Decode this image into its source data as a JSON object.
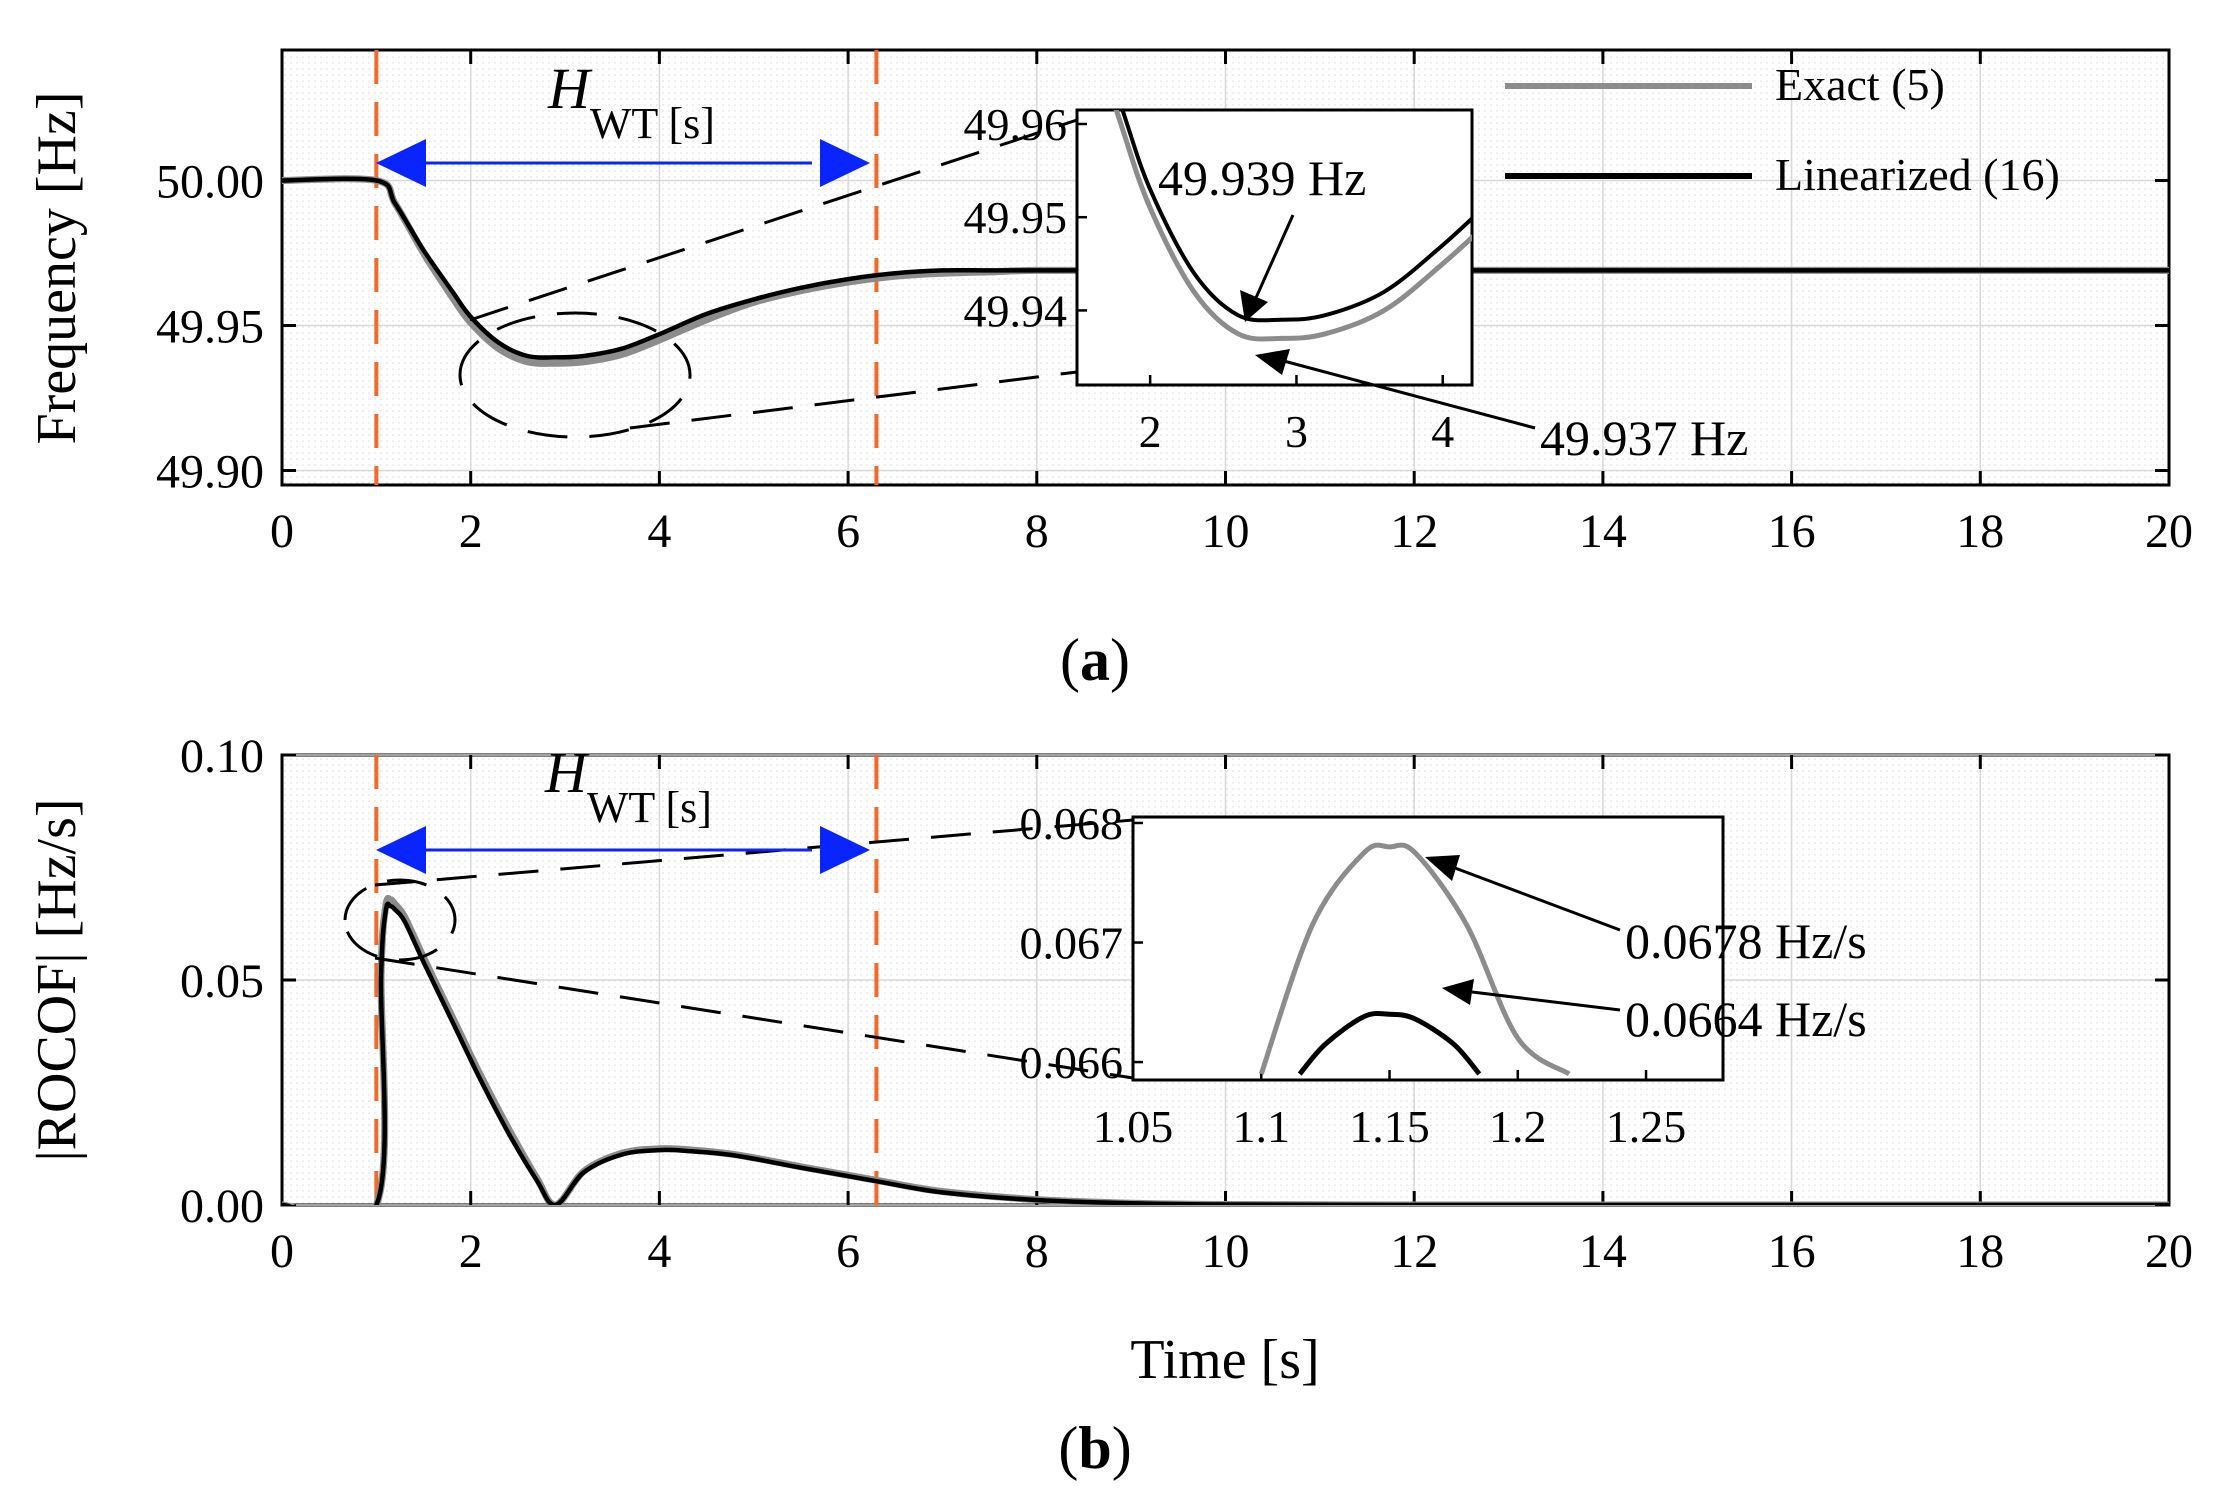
{
  "chart_data": [
    {
      "id": "a",
      "type": "line",
      "caption": {
        "open": "(",
        "letter": "a",
        "close": ")"
      },
      "xlabel": "",
      "ylabel": "Frequency [Hz]",
      "xlim": [
        0,
        20
      ],
      "ylim": [
        49.895,
        50.045
      ],
      "xticks": [
        0,
        2,
        4,
        6,
        8,
        10,
        12,
        14,
        16,
        18,
        20
      ],
      "yticks": [
        {
          "value": 50.0,
          "label": "50.00"
        },
        {
          "value": 49.95,
          "label": "49.95"
        },
        {
          "value": 49.9,
          "label": "49.90"
        }
      ],
      "vlines": [
        1.0,
        6.3
      ],
      "span_label": {
        "main": "H",
        "sub": "WT [s]"
      },
      "series": [
        {
          "name": "Exact (5)",
          "color": "#8c8c8c",
          "x": [
            0,
            1,
            1.2,
            1.5,
            1.8,
            2.0,
            2.3,
            2.6,
            2.9,
            3.2,
            3.6,
            4.0,
            4.5,
            5.0,
            5.5,
            6.0,
            6.5,
            7.0,
            7.5,
            8.0,
            9.0,
            10.0,
            12.0,
            14.0,
            16.0,
            18.0,
            20.0
          ],
          "y": [
            50.0,
            50.0,
            49.992,
            49.975,
            49.96,
            49.951,
            49.942,
            49.9375,
            49.937,
            49.9375,
            49.94,
            49.945,
            49.952,
            49.958,
            49.962,
            49.965,
            49.967,
            49.968,
            49.9685,
            49.969,
            49.969,
            49.969,
            49.969,
            49.969,
            49.969,
            49.969,
            49.969
          ]
        },
        {
          "name": "Linearized (16)",
          "color": "#000000",
          "x": [
            0,
            1,
            1.2,
            1.5,
            1.8,
            2.0,
            2.3,
            2.6,
            2.9,
            3.2,
            3.6,
            4.0,
            4.5,
            5.0,
            5.5,
            6.0,
            6.5,
            7.0,
            7.5,
            8.0,
            9.0,
            10.0,
            12.0,
            14.0,
            16.0,
            18.0,
            20.0
          ],
          "y": [
            50.0,
            50.0,
            49.992,
            49.976,
            49.962,
            49.953,
            49.944,
            49.9395,
            49.939,
            49.9395,
            49.942,
            49.947,
            49.954,
            49.959,
            49.963,
            49.966,
            49.968,
            49.969,
            49.969,
            49.969,
            49.969,
            49.969,
            49.969,
            49.969,
            49.969,
            49.969,
            49.969
          ]
        }
      ],
      "inset": {
        "xlim": [
          1.5,
          4.2
        ],
        "ylim": [
          49.932,
          49.9615
        ],
        "xticks": [
          2,
          3,
          4
        ],
        "yticks": [
          {
            "value": 49.96,
            "label": "49.96"
          },
          {
            "value": 49.95,
            "label": "49.95"
          },
          {
            "value": 49.94,
            "label": "49.94"
          }
        ]
      },
      "annotations": [
        {
          "text": "49.939 Hz",
          "target": "Linearized (16) minimum",
          "x": 2.9,
          "y": 49.939
        },
        {
          "text": "49.937 Hz",
          "target": "Exact (5) minimum",
          "x": 2.9,
          "y": 49.937
        }
      ]
    },
    {
      "id": "b",
      "type": "line",
      "caption": {
        "open": "(",
        "letter": "b",
        "close": ")"
      },
      "xlabel": "Time [s]",
      "ylabel": "|ROCOF| [Hz/s]",
      "xlim": [
        0,
        20
      ],
      "ylim": [
        0,
        0.1
      ],
      "xticks": [
        0,
        2,
        4,
        6,
        8,
        10,
        12,
        14,
        16,
        18,
        20
      ],
      "yticks": [
        {
          "value": 0.1,
          "label": "0.10"
        },
        {
          "value": 0.05,
          "label": "0.05"
        },
        {
          "value": 0.0,
          "label": "0.00"
        }
      ],
      "vlines": [
        1.0,
        6.3
      ],
      "span_label": {
        "main": "H",
        "sub": "WT [s]"
      },
      "series": [
        {
          "name": "Exact (5)",
          "color": "#8c8c8c",
          "x": [
            0,
            1.0,
            1.05,
            1.1,
            1.15,
            1.2,
            1.3,
            1.5,
            1.8,
            2.1,
            2.4,
            2.7,
            2.9,
            3.2,
            3.6,
            4.0,
            4.3,
            4.8,
            5.5,
            6.3,
            7.0,
            8.0,
            9.0,
            10.0,
            12.0,
            14.0,
            16.0,
            18.0,
            20.0
          ],
          "y": [
            0,
            0,
            0.052,
            0.0665,
            0.0678,
            0.0668,
            0.064,
            0.055,
            0.042,
            0.029,
            0.017,
            0.006,
            0.0,
            0.0075,
            0.0115,
            0.0125,
            0.0123,
            0.0112,
            0.0085,
            0.0055,
            0.003,
            0.0012,
            0.0004,
            0.0001,
            0,
            0,
            0,
            0,
            0
          ]
        },
        {
          "name": "Linearized (16)",
          "color": "#000000",
          "x": [
            0,
            1.0,
            1.05,
            1.1,
            1.15,
            1.2,
            1.3,
            1.5,
            1.8,
            2.1,
            2.4,
            2.7,
            2.9,
            3.2,
            3.6,
            4.0,
            4.3,
            4.8,
            5.5,
            6.3,
            7.0,
            8.0,
            9.0,
            10.0,
            12.0,
            14.0,
            16.0,
            18.0,
            20.0
          ],
          "y": [
            0,
            0,
            0.051,
            0.0655,
            0.0664,
            0.0656,
            0.063,
            0.054,
            0.041,
            0.028,
            0.016,
            0.0055,
            0.0,
            0.0073,
            0.0112,
            0.0122,
            0.012,
            0.011,
            0.0083,
            0.0053,
            0.0028,
            0.0011,
            0.0004,
            0.0001,
            0,
            0,
            0,
            0,
            0
          ]
        }
      ],
      "inset": {
        "xlim": [
          1.05,
          1.28
        ],
        "ylim": [
          0.06585,
          0.06805
        ],
        "xticks": [
          {
            "value": 1.05,
            "label": "1.05"
          },
          {
            "value": 1.1,
            "label": "1.1"
          },
          {
            "value": 1.15,
            "label": "1.15"
          },
          {
            "value": 1.2,
            "label": "1.2"
          },
          {
            "value": 1.25,
            "label": "1.25"
          }
        ],
        "yticks": [
          {
            "value": 0.068,
            "label": "0.068"
          },
          {
            "value": 0.067,
            "label": "0.067"
          },
          {
            "value": 0.066,
            "label": "0.066"
          }
        ],
        "series": [
          {
            "name": "Exact (5)",
            "color": "#8c8c8c",
            "x": [
              1.1,
              1.12,
              1.14,
              1.15,
              1.16,
              1.18,
              1.2,
              1.22
            ],
            "y": [
              0.0659,
              0.06715,
              0.06775,
              0.0678,
              0.06775,
              0.06715,
              0.0662,
              0.0659
            ]
          },
          {
            "name": "Linearized (16)",
            "color": "#000000",
            "x": [
              1.115,
              1.125,
              1.14,
              1.15,
              1.16,
              1.175,
              1.185
            ],
            "y": [
              0.0659,
              0.06615,
              0.06638,
              0.0664,
              0.06636,
              0.06615,
              0.0659
            ]
          }
        ]
      },
      "annotations": [
        {
          "text": "0.0678 Hz/s",
          "target": "Exact (5) peak",
          "x": 1.15,
          "y": 0.0678
        },
        {
          "text": "0.0664 Hz/s",
          "target": "Linearized (16) peak",
          "x": 1.15,
          "y": 0.0664
        }
      ]
    }
  ],
  "legend": {
    "items": [
      {
        "label": "Exact (5)",
        "color": "#8c8c8c"
      },
      {
        "label": "Linearized (16)",
        "color": "#000000"
      }
    ]
  },
  "colors": {
    "vline": "#f06a2a",
    "arrow": "#0a24ff",
    "grid": "#d8d8d8"
  }
}
